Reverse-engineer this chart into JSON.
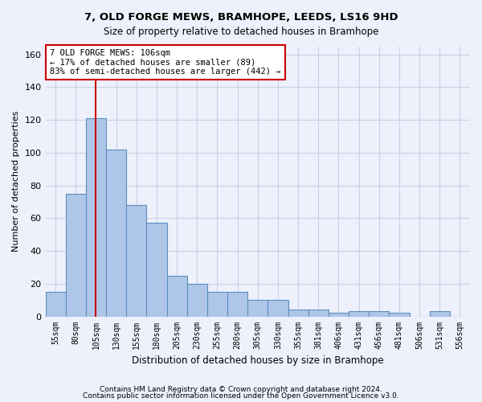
{
  "title": "7, OLD FORGE MEWS, BRAMHOPE, LEEDS, LS16 9HD",
  "subtitle": "Size of property relative to detached houses in Bramhope",
  "xlabel": "Distribution of detached houses by size in Bramhope",
  "ylabel": "Number of detached properties",
  "footer_line1": "Contains HM Land Registry data © Crown copyright and database right 2024.",
  "footer_line2": "Contains public sector information licensed under the Open Government Licence v3.0.",
  "categories": [
    "55sqm",
    "80sqm",
    "105sqm",
    "130sqm",
    "155sqm",
    "180sqm",
    "205sqm",
    "230sqm",
    "255sqm",
    "280sqm",
    "305sqm",
    "330sqm",
    "355sqm",
    "381sqm",
    "406sqm",
    "431sqm",
    "456sqm",
    "481sqm",
    "506sqm",
    "531sqm",
    "556sqm"
  ],
  "values": [
    15,
    75,
    121,
    102,
    68,
    57,
    25,
    20,
    15,
    15,
    10,
    10,
    4,
    4,
    2,
    3,
    3,
    2,
    0,
    3,
    0
  ],
  "bar_color": "#aec6e8",
  "bar_edge_color": "#5b8fbf",
  "background_color": "#eef1fb",
  "grid_color": "#c8d0e8",
  "vline_x": 2,
  "vline_color": "#cc0000",
  "annotation_line1": "7 OLD FORGE MEWS: 106sqm",
  "annotation_line2": "← 17% of detached houses are smaller (89)",
  "annotation_line3": "83% of semi-detached houses are larger (442) →",
  "annotation_box_color": "#ffffff",
  "annotation_box_edge": "#cc0000",
  "ylim": [
    0,
    165
  ],
  "yticks": [
    0,
    20,
    40,
    60,
    80,
    100,
    120,
    140,
    160
  ]
}
